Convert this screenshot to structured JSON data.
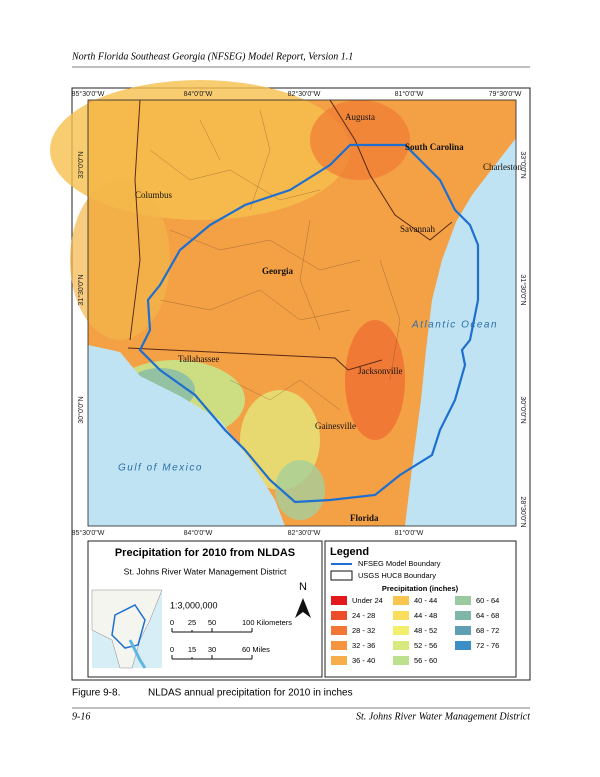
{
  "header": {
    "title": "North Florida Southeast Georgia (NFSEG) Model Report, Version 1.1"
  },
  "map": {
    "top_labels": [
      "85°30'0\"W",
      "84°0'0\"W",
      "82°30'0\"W",
      "81°0'0\"W",
      "79°30'0\"W"
    ],
    "bottom_labels": [
      "85°30'0\"W",
      "84°0'0\"W",
      "82°30'0\"W",
      "81°0'0\"W"
    ],
    "left_labels": [
      "33°0'0\"N",
      "31°30'0\"N",
      "30°0'0\"N"
    ],
    "right_labels": [
      "33°0'0\"N",
      "31°30'0\"N",
      "30°0'0\"N",
      "28°30'0\"N"
    ],
    "places": [
      "Augusta",
      "South Carolina",
      "Charleston",
      "Columbus",
      "Savannah",
      "Georgia",
      "Atlantic Ocean",
      "Tallahassee",
      "Jacksonville",
      "Gainesville",
      "Gulf of Mexico",
      "Florida"
    ]
  },
  "map_panel": {
    "title": "Precipitation for 2010 from NLDAS",
    "subtitle": "St. Johns River Water Management District",
    "north": "N",
    "scale": "1:3,000,000",
    "km_scale": [
      "0",
      "25",
      "50",
      "100 Kilometers"
    ],
    "mile_scale": [
      "0",
      "15",
      "30",
      "60 Miles"
    ]
  },
  "legend": {
    "title": "Legend",
    "boundaries": [
      "NFSEG Model Boundary",
      "USGS HUC8 Boundary"
    ],
    "precip_title": "Precipitation (inches)",
    "classes": [
      {
        "label": "Under 24",
        "color": "#e3181c"
      },
      {
        "label": "24 - 28",
        "color": "#ee4d2b"
      },
      {
        "label": "28 - 32",
        "color": "#f27636"
      },
      {
        "label": "32 - 36",
        "color": "#f5953f"
      },
      {
        "label": "36 - 40",
        "color": "#f7ae4a"
      },
      {
        "label": "40 - 44",
        "color": "#f8c54f"
      },
      {
        "label": "44 - 48",
        "color": "#f9dd5c"
      },
      {
        "label": "48 - 52",
        "color": "#f3ee6b"
      },
      {
        "label": "52 - 56",
        "color": "#d8e97d"
      },
      {
        "label": "56 - 60",
        "color": "#bde08e"
      },
      {
        "label": "60 - 64",
        "color": "#9ccaa0"
      },
      {
        "label": "64 - 68",
        "color": "#7fb6a8"
      },
      {
        "label": "68 - 72",
        "color": "#5f9fb3"
      },
      {
        "label": "72 - 76",
        "color": "#3b8fc5"
      }
    ]
  },
  "caption": {
    "number": "Figure 9-8.",
    "text": "NLDAS annual precipitation for 2010 in inches"
  },
  "footer": {
    "page": "9-16",
    "org": "St. Johns River Water Management District"
  }
}
